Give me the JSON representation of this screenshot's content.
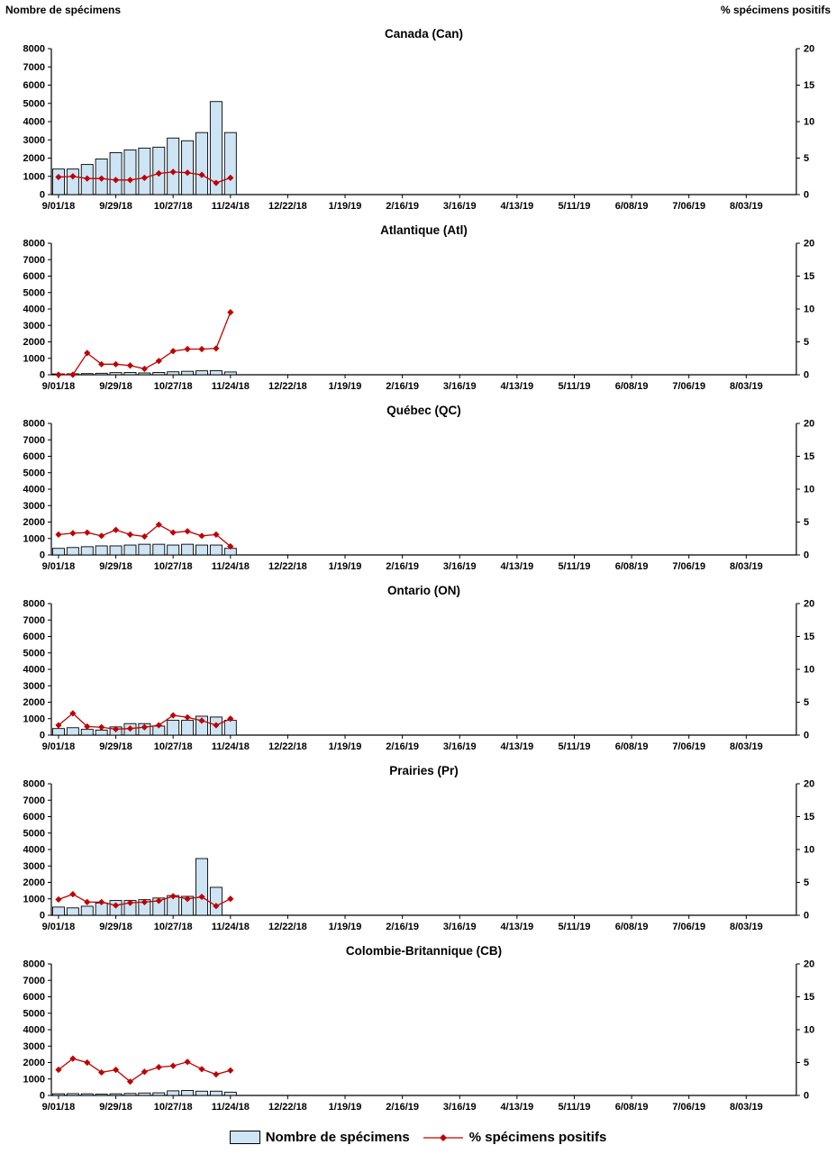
{
  "header": {
    "left": "Nombre de spécimens",
    "right": "% spécimens positifs"
  },
  "legend": {
    "bar_label": "Nombre de spécimens",
    "line_label": "% spécimens positifs"
  },
  "colors": {
    "bar_fill": "#CDE4F5",
    "bar_stroke": "#000000",
    "line": "#C00000",
    "axis": "#000000"
  },
  "axes": {
    "y_left_label": "Nombre de spécimens",
    "y_right_label": "% spécimens positifs",
    "y_left_ticks": [
      0,
      1000,
      2000,
      3000,
      4000,
      5000,
      6000,
      7000,
      8000
    ],
    "y_left_max": 8000,
    "y_right_ticks": [
      0,
      5,
      10,
      15,
      20
    ],
    "y_right_max": 20,
    "x_tick_labels": [
      "9/01/18",
      "9/29/18",
      "10/27/18",
      "11/24/18",
      "12/22/18",
      "1/19/19",
      "2/16/19",
      "3/16/19",
      "4/13/19",
      "5/11/19",
      "6/08/19",
      "7/06/19",
      "8/03/19"
    ],
    "x_tick_weeks": [
      0,
      4,
      8,
      12,
      16,
      20,
      24,
      28,
      32,
      36,
      40,
      44,
      48
    ],
    "total_weeks": 52,
    "grid": false,
    "legend_position": "bottom"
  },
  "chart_data": [
    {
      "type": "bar+line",
      "title": "Canada (Can)",
      "bar_series": "Nombre de spécimens",
      "line_series": "% spécimens positifs",
      "bars": [
        1400,
        1400,
        1650,
        1950,
        2300,
        2450,
        2550,
        2600,
        3100,
        2950,
        3400,
        5100,
        3400
      ],
      "line": [
        2.4,
        2.5,
        2.2,
        2.2,
        2.0,
        2.0,
        2.3,
        2.9,
        3.1,
        3.0,
        2.7,
        1.6,
        2.3
      ]
    },
    {
      "type": "bar+line",
      "title": "Atlantique (Atl)",
      "bar_series": "Nombre de spécimens",
      "line_series": "% spécimens positifs",
      "bars": [
        50,
        60,
        70,
        90,
        130,
        140,
        110,
        140,
        180,
        210,
        240,
        250,
        170
      ],
      "line": [
        0,
        0,
        3.3,
        1.6,
        1.6,
        1.4,
        0.9,
        2.1,
        3.6,
        3.9,
        3.9,
        4.0,
        9.5
      ]
    },
    {
      "type": "bar+line",
      "title": "Québec (QC)",
      "bar_series": "Nombre de spécimens",
      "line_series": "% spécimens positifs",
      "bars": [
        400,
        450,
        500,
        550,
        550,
        600,
        650,
        650,
        600,
        650,
        600,
        600,
        400
      ],
      "line": [
        3.1,
        3.3,
        3.4,
        2.9,
        3.8,
        3.1,
        2.8,
        4.6,
        3.4,
        3.6,
        2.9,
        3.1,
        1.3
      ]
    },
    {
      "type": "bar+line",
      "title": "Ontario (ON)",
      "bar_series": "Nombre de spécimens",
      "line_series": "% spécimens positifs",
      "bars": [
        400,
        450,
        350,
        300,
        500,
        700,
        700,
        550,
        900,
        900,
        1150,
        1100,
        900
      ],
      "line": [
        1.5,
        3.3,
        1.3,
        1.2,
        0.9,
        1.0,
        1.2,
        1.5,
        3.0,
        2.7,
        2.2,
        1.5,
        2.5
      ]
    },
    {
      "type": "bar+line",
      "title": "Prairies (Pr)",
      "bar_series": "Nombre de spécimens",
      "line_series": "% spécimens positifs",
      "bars": [
        500,
        450,
        550,
        750,
        900,
        900,
        950,
        1050,
        1200,
        1150,
        3450,
        1700,
        0
      ],
      "line": [
        2.4,
        3.2,
        2.0,
        2.0,
        1.5,
        1.9,
        2.0,
        2.2,
        2.9,
        2.5,
        2.8,
        1.4,
        2.5
      ]
    },
    {
      "type": "bar+line",
      "title": "Colombie-Britannique (CB)",
      "bar_series": "Nombre de spécimens",
      "line_series": "% spécimens positifs",
      "bars": [
        100,
        110,
        100,
        80,
        100,
        120,
        150,
        160,
        280,
        300,
        260,
        260,
        200
      ],
      "line": [
        3.9,
        5.6,
        5.0,
        3.5,
        3.9,
        2.1,
        3.6,
        4.3,
        4.5,
        5.1,
        4.0,
        3.2,
        3.8
      ]
    }
  ]
}
